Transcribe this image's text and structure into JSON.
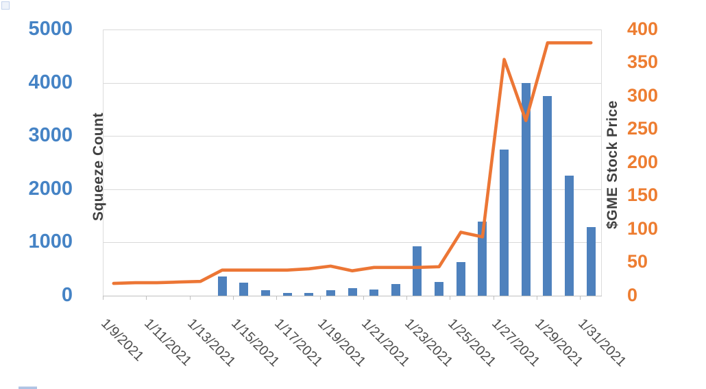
{
  "chart_data": {
    "type": "combo",
    "categories": [
      "1/9/2021",
      "1/10/2021",
      "1/11/2021",
      "1/12/2021",
      "1/13/2021",
      "1/14/2021",
      "1/15/2021",
      "1/16/2021",
      "1/17/2021",
      "1/18/2021",
      "1/19/2021",
      "1/20/2021",
      "1/21/2021",
      "1/22/2021",
      "1/23/2021",
      "1/24/2021",
      "1/25/2021",
      "1/26/2021",
      "1/27/2021",
      "1/28/2021",
      "1/29/2021",
      "1/30/2021",
      "1/31/2021"
    ],
    "x_tick_labels": [
      "1/9/2021",
      "1/11/2021",
      "1/13/2021",
      "1/15/2021",
      "1/17/2021",
      "1/19/2021",
      "1/21/2021",
      "1/23/2021",
      "1/25/2021",
      "1/27/2021",
      "1/29/2021",
      "1/31/2021"
    ],
    "series": [
      {
        "name": "Squeeze Count",
        "type": "bar",
        "axis": "left",
        "color": "#4e81bd",
        "values": [
          0,
          0,
          0,
          0,
          0,
          360,
          245,
          100,
          50,
          50,
          100,
          130,
          110,
          210,
          925,
          250,
          620,
          1390,
          2740,
          4000,
          3750,
          2250,
          1280
        ]
      },
      {
        "name": "$GME Stock Price",
        "type": "line",
        "axis": "right",
        "color": "#ec7635",
        "values": [
          18,
          19,
          19,
          20,
          21,
          38,
          38,
          38,
          38,
          40,
          44,
          37,
          42,
          42,
          42,
          43,
          95,
          88,
          355,
          263,
          380,
          380,
          380
        ]
      }
    ],
    "left_axis": {
      "title": "Squeeze Count",
      "min": 0,
      "max": 5000,
      "step": 1000,
      "ticks": [
        "0",
        "1000",
        "2000",
        "3000",
        "4000",
        "5000"
      ],
      "label_color": "#4583c5"
    },
    "right_axis": {
      "title": "$GME Stock Price",
      "min": 0,
      "max": 400,
      "step": 50,
      "ticks": [
        "0",
        "50",
        "100",
        "150",
        "200",
        "250",
        "300",
        "350",
        "400"
      ],
      "label_color": "#ed7d31"
    },
    "grid": true,
    "legend_position": "none",
    "title": ""
  },
  "styles": {
    "bar_color": "#4e81bd",
    "line_color": "#ec7635",
    "gridline_color": "#d9d9d9",
    "axis_line_color": "#bfbfbf",
    "axis_title_color": "#404040",
    "date_label_color": "#4d4d4d"
  }
}
